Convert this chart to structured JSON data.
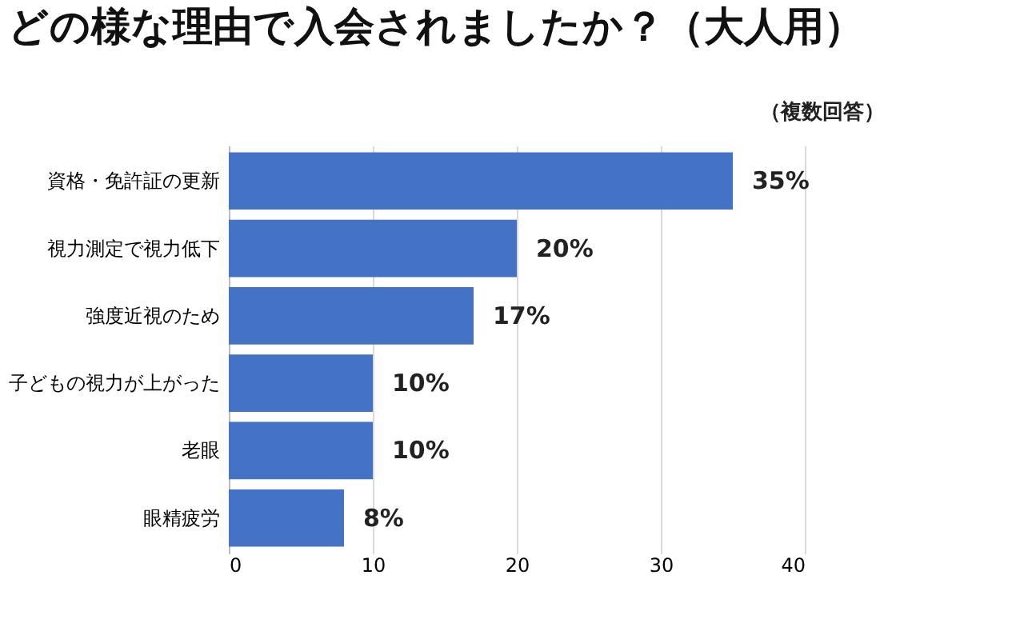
{
  "chart_data": {
    "type": "bar",
    "orientation": "horizontal",
    "title": "どの様な理由で入会されましたか？（大人用）",
    "subtitle": "（複数回答）",
    "categories": [
      "資格・免許証の更新",
      "視力測定で視力低下",
      "強度近視のため",
      "子どもの視力が上がった",
      "老眼",
      "眼精疲労"
    ],
    "values": [
      35,
      20,
      17,
      10,
      10,
      8
    ],
    "value_labels": [
      "35%",
      "20%",
      "17%",
      "10%",
      "10%",
      "8%"
    ],
    "color": "#4472c4",
    "xlim": [
      0,
      40
    ],
    "xticks": [
      0,
      10,
      20,
      30,
      40
    ],
    "grid": "x"
  }
}
